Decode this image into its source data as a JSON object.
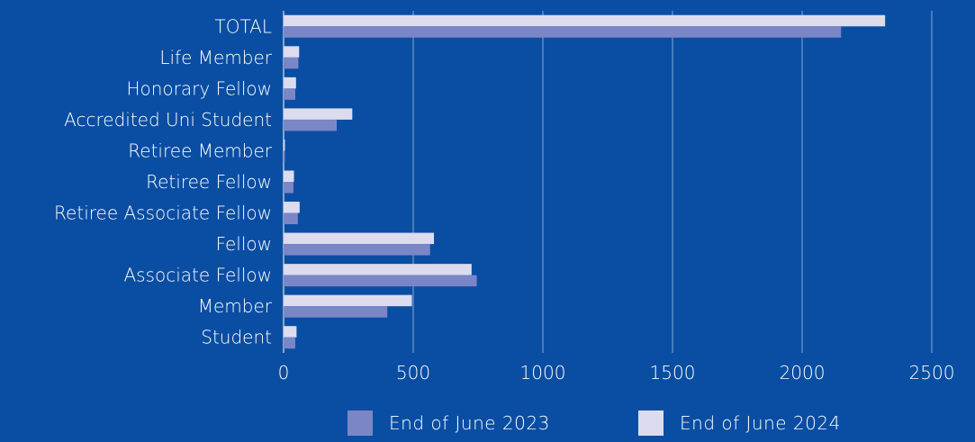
{
  "chart_data": {
    "type": "bar",
    "orientation": "horizontal",
    "categories": [
      "TOTAL",
      "Life Member",
      "Honorary Fellow",
      "Accredited Uni Student",
      "Retiree Member",
      "Retiree Fellow",
      "Retiree Associate Fellow",
      "Fellow",
      "Associate Fellow",
      "Member",
      "Student"
    ],
    "series": [
      {
        "name": "End of June 2023",
        "color": "#7b86c7",
        "values": [
          2150,
          57,
          45,
          205,
          5,
          38,
          55,
          565,
          745,
          400,
          45
        ]
      },
      {
        "name": "End of June 2024",
        "color": "#dcdcee",
        "values": [
          2320,
          60,
          48,
          265,
          5,
          40,
          62,
          580,
          725,
          495,
          50
        ]
      }
    ],
    "xticks": [
      "0",
      "500",
      "1000",
      "1500",
      "2000",
      "2500"
    ],
    "xlim": [
      0,
      2500
    ],
    "grid": "vertical",
    "legend_position": "bottom",
    "title": "",
    "xlabel": "",
    "ylabel": ""
  }
}
